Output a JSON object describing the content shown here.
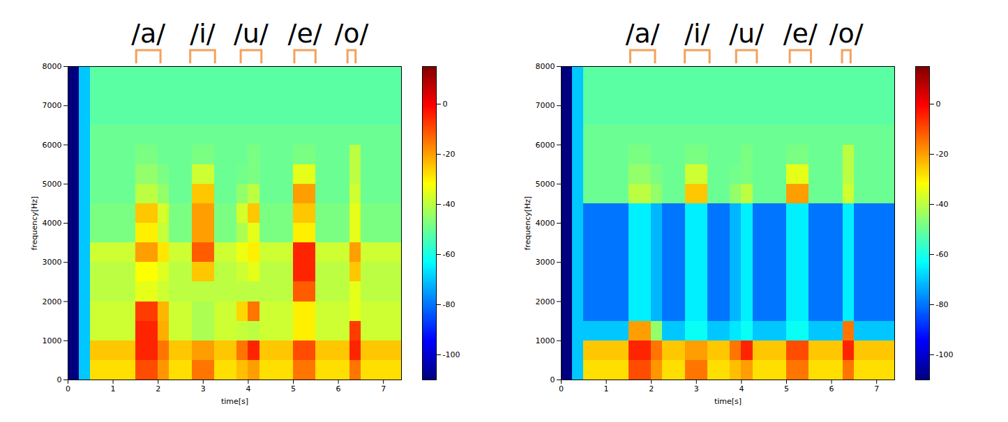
{
  "chart_data": [
    {
      "type": "heatmap",
      "x_label": "time[s]",
      "y_label": "frequency[Hz]",
      "xlim": [
        0,
        7.4
      ],
      "xticks": [
        0,
        1,
        2,
        3,
        4,
        5,
        6,
        7
      ],
      "ylim": [
        0,
        8000
      ],
      "yticks": [
        0,
        1000,
        2000,
        3000,
        4000,
        5000,
        6000,
        7000,
        8000
      ],
      "color": "jet",
      "colorbar": {
        "range": [
          -110,
          15
        ],
        "ticks": [
          -100,
          -80,
          -60,
          -40,
          -20,
          0
        ]
      },
      "annotations": [
        {
          "text": "/a/",
          "x1": 1.52,
          "x2": 2.06
        },
        {
          "text": "/i/",
          "x1": 2.72,
          "x2": 3.27
        },
        {
          "text": "/u/",
          "x1": 3.84,
          "x2": 4.3
        },
        {
          "text": "/e/",
          "x1": 5.03,
          "x2": 5.5
        },
        {
          "text": "/o/",
          "x1": 6.21,
          "x2": 6.39
        }
      ],
      "time_bins": [
        0,
        0.25,
        0.5,
        0.75,
        1,
        1.25,
        1.5,
        1.75,
        2,
        2.25,
        2.5,
        2.75,
        3,
        3.25,
        3.5,
        3.75,
        4,
        4.25,
        4.5,
        4.75,
        5,
        5.25,
        5.5,
        5.75,
        6,
        6.25,
        6.5,
        6.75,
        7,
        7.25,
        7.4
      ],
      "freq_bins": [
        0,
        500,
        1000,
        1500,
        2000,
        2500,
        3000,
        3500,
        4000,
        4500,
        5000,
        5500,
        6000,
        6500,
        7000,
        7500,
        8000
      ],
      "cells": [
        [
          -110,
          -70,
          -28,
          -28,
          -28,
          -28,
          -10,
          -10,
          -19,
          -28,
          -28,
          -15,
          -15,
          -28,
          -28,
          -24,
          -20,
          -28,
          -28,
          -28,
          -15,
          -15,
          -28,
          -28,
          -28,
          -15,
          -28,
          -28,
          -28,
          -28
        ],
        [
          -110,
          -70,
          -25,
          -25,
          -25,
          -25,
          -5,
          -5,
          -15,
          -25,
          -25,
          -20,
          -20,
          -25,
          -25,
          -15,
          -5,
          -25,
          -25,
          -25,
          -10,
          -10,
          -25,
          -25,
          -25,
          -5,
          -25,
          -25,
          -25,
          -25
        ],
        [
          -110,
          -70,
          -38,
          -38,
          -38,
          -38,
          -5,
          -5,
          -22,
          -38,
          -38,
          -42,
          -42,
          -38,
          -38,
          -39,
          -40,
          -38,
          -38,
          -38,
          -30,
          -30,
          -38,
          -38,
          -38,
          -8,
          -38,
          -38,
          -38,
          -38
        ],
        [
          -110,
          -70,
          -38,
          -38,
          -38,
          -38,
          -8,
          -8,
          -23,
          -38,
          -38,
          -42,
          -42,
          -38,
          -38,
          -27,
          -15,
          -38,
          -38,
          -38,
          -30,
          -30,
          -38,
          -38,
          -38,
          -35,
          -38,
          -38,
          -38,
          -38
        ],
        [
          -110,
          -70,
          -40,
          -40,
          -40,
          -40,
          -35,
          -35,
          -38,
          -40,
          -40,
          -40,
          -40,
          -40,
          -40,
          -40,
          -40,
          -40,
          -40,
          -40,
          -12,
          -12,
          -40,
          -40,
          -40,
          -35,
          -40,
          -40,
          -40,
          -40
        ],
        [
          -110,
          -70,
          -40,
          -40,
          -40,
          -40,
          -32,
          -32,
          -36,
          -40,
          -40,
          -25,
          -25,
          -40,
          -40,
          -38,
          -35,
          -40,
          -40,
          -40,
          -5,
          -5,
          -40,
          -40,
          -40,
          -25,
          -40,
          -40,
          -40,
          -40
        ],
        [
          -110,
          -70,
          -38,
          -38,
          -38,
          -38,
          -20,
          -20,
          -29,
          -38,
          -38,
          -12,
          -12,
          -38,
          -38,
          -34,
          -30,
          -38,
          -38,
          -38,
          -5,
          -5,
          -38,
          -38,
          -38,
          -20,
          -38,
          -38,
          -38,
          -38
        ],
        [
          -110,
          -70,
          -48,
          -48,
          -48,
          -48,
          -30,
          -30,
          -39,
          -48,
          -48,
          -20,
          -20,
          -48,
          -48,
          -42,
          -35,
          -48,
          -48,
          -48,
          -30,
          -30,
          -48,
          -48,
          -48,
          -35,
          -48,
          -48,
          -48,
          -48
        ],
        [
          -110,
          -70,
          -48,
          -48,
          -48,
          -48,
          -25,
          -25,
          -37,
          -48,
          -48,
          -20,
          -20,
          -48,
          -48,
          -37,
          -25,
          -48,
          -48,
          -48,
          -25,
          -25,
          -48,
          -48,
          -48,
          -35,
          -48,
          -48,
          -48,
          -48
        ],
        [
          -110,
          -70,
          -50,
          -50,
          -50,
          -50,
          -40,
          -40,
          -45,
          -50,
          -50,
          -25,
          -25,
          -50,
          -50,
          -45,
          -40,
          -50,
          -50,
          -50,
          -20,
          -20,
          -50,
          -50,
          -50,
          -38,
          -50,
          -50,
          -50,
          -50
        ],
        [
          -110,
          -70,
          -50,
          -50,
          -50,
          -50,
          -45,
          -45,
          -48,
          -50,
          -50,
          -38,
          -38,
          -50,
          -50,
          -49,
          -48,
          -50,
          -50,
          -50,
          -35,
          -35,
          -50,
          -50,
          -50,
          -40,
          -50,
          -50,
          -50,
          -50
        ],
        [
          -110,
          -70,
          -50,
          -50,
          -50,
          -50,
          -48,
          -48,
          -50,
          -50,
          -50,
          -48,
          -48,
          -50,
          -50,
          -50,
          -48,
          -50,
          -50,
          -50,
          -48,
          -48,
          -50,
          -50,
          -50,
          -40,
          -50,
          -50,
          -50,
          -50
        ],
        [
          -110,
          -70,
          -50,
          -50,
          -50,
          -50,
          -50,
          -50,
          -50,
          -50,
          -50,
          -50,
          -50,
          -50,
          -50,
          -50,
          -50,
          -50,
          -50,
          -50,
          -50,
          -50,
          -50,
          -50,
          -50,
          -50,
          -50,
          -50,
          -50,
          -50
        ],
        [
          -110,
          -70,
          -52,
          -52,
          -52,
          -52,
          -52,
          -52,
          -52,
          -52,
          -52,
          -52,
          -52,
          -52,
          -52,
          -52,
          -52,
          -52,
          -52,
          -52,
          -52,
          -52,
          -52,
          -52,
          -52,
          -52,
          -52,
          -52,
          -52,
          -52
        ],
        [
          -110,
          -70,
          -52,
          -52,
          -52,
          -52,
          -52,
          -52,
          -52,
          -52,
          -52,
          -52,
          -52,
          -52,
          -52,
          -52,
          -52,
          -52,
          -52,
          -52,
          -52,
          -52,
          -52,
          -52,
          -52,
          -52,
          -52,
          -52,
          -52,
          -52
        ],
        [
          -110,
          -70,
          -52,
          -52,
          -52,
          -52,
          -52,
          -52,
          -52,
          -52,
          -52,
          -52,
          -52,
          -52,
          -52,
          -52,
          -52,
          -52,
          -52,
          -52,
          -52,
          -52,
          -52,
          -52,
          -52,
          -52,
          -52,
          -52,
          -52,
          -52
        ]
      ]
    },
    {
      "type": "heatmap",
      "x_label": "time[s]",
      "y_label": "frequency[Hz]",
      "xlim": [
        0,
        7.4
      ],
      "xticks": [
        0,
        1,
        2,
        3,
        4,
        5,
        6,
        7
      ],
      "ylim": [
        0,
        8000
      ],
      "yticks": [
        0,
        1000,
        2000,
        3000,
        4000,
        5000,
        6000,
        7000,
        8000
      ],
      "color": "jet",
      "colorbar": {
        "range": [
          -110,
          15
        ],
        "ticks": [
          -100,
          -80,
          -60,
          -40,
          -20,
          0
        ]
      },
      "annotations": [
        {
          "text": "/a/",
          "x1": 1.54,
          "x2": 2.09
        },
        {
          "text": "/i/",
          "x1": 2.75,
          "x2": 3.3
        },
        {
          "text": "/u/",
          "x1": 3.89,
          "x2": 4.35
        },
        {
          "text": "/e/",
          "x1": 5.08,
          "x2": 5.55
        },
        {
          "text": "/o/",
          "x1": 6.24,
          "x2": 6.43
        }
      ],
      "time_bins": [
        0,
        0.25,
        0.5,
        0.75,
        1,
        1.25,
        1.5,
        1.75,
        2,
        2.25,
        2.5,
        2.75,
        3,
        3.25,
        3.5,
        3.75,
        4,
        4.25,
        4.5,
        4.75,
        5,
        5.25,
        5.5,
        5.75,
        6,
        6.25,
        6.5,
        6.75,
        7,
        7.25,
        7.4
      ],
      "freq_bins": [
        0,
        500,
        1000,
        1500,
        2000,
        2500,
        3000,
        3500,
        4000,
        4500,
        5000,
        5500,
        6000,
        6500,
        7000,
        7500,
        8000
      ],
      "cells": [
        [
          -110,
          -70,
          -28,
          -28,
          -28,
          -28,
          -10,
          -10,
          -19,
          -28,
          -28,
          -15,
          -15,
          -28,
          -28,
          -24,
          -20,
          -28,
          -28,
          -28,
          -15,
          -15,
          -28,
          -28,
          -28,
          -15,
          -28,
          -28,
          -28,
          -28
        ],
        [
          -110,
          -70,
          -25,
          -25,
          -25,
          -25,
          -5,
          -5,
          -15,
          -25,
          -25,
          -20,
          -20,
          -25,
          -25,
          -15,
          -5,
          -25,
          -25,
          -25,
          -10,
          -10,
          -25,
          -25,
          -25,
          -5,
          -25,
          -25,
          -25,
          -25
        ],
        [
          -110,
          -70,
          -70,
          -70,
          -70,
          -70,
          -20,
          -20,
          -45,
          -70,
          -70,
          -62,
          -62,
          -70,
          -70,
          -66,
          -62,
          -70,
          -70,
          -70,
          -62,
          -62,
          -70,
          -70,
          -70,
          -15,
          -70,
          -70,
          -70,
          -70
        ],
        [
          -110,
          -70,
          -80,
          -80,
          -80,
          -80,
          -65,
          -65,
          -72,
          -80,
          -80,
          -65,
          -65,
          -80,
          -80,
          -72,
          -65,
          -80,
          -80,
          -80,
          -65,
          -65,
          -80,
          -80,
          -80,
          -65,
          -80,
          -80,
          -80,
          -80
        ],
        [
          -110,
          -70,
          -80,
          -80,
          -80,
          -80,
          -65,
          -65,
          -72,
          -80,
          -80,
          -65,
          -65,
          -80,
          -80,
          -72,
          -65,
          -80,
          -80,
          -80,
          -65,
          -65,
          -80,
          -80,
          -80,
          -65,
          -80,
          -80,
          -80,
          -80
        ],
        [
          -110,
          -70,
          -80,
          -80,
          -80,
          -80,
          -65,
          -65,
          -72,
          -80,
          -80,
          -65,
          -65,
          -80,
          -80,
          -72,
          -65,
          -80,
          -80,
          -80,
          -65,
          -65,
          -80,
          -80,
          -80,
          -65,
          -80,
          -80,
          -80,
          -80
        ],
        [
          -110,
          -70,
          -80,
          -80,
          -80,
          -80,
          -65,
          -65,
          -72,
          -80,
          -80,
          -65,
          -65,
          -80,
          -80,
          -72,
          -65,
          -80,
          -80,
          -80,
          -65,
          -65,
          -80,
          -80,
          -80,
          -65,
          -80,
          -80,
          -80,
          -80
        ],
        [
          -110,
          -70,
          -80,
          -80,
          -80,
          -80,
          -65,
          -65,
          -72,
          -80,
          -80,
          -65,
          -65,
          -80,
          -80,
          -72,
          -65,
          -80,
          -80,
          -80,
          -65,
          -65,
          -80,
          -80,
          -80,
          -65,
          -80,
          -80,
          -80,
          -80
        ],
        [
          -110,
          -70,
          -80,
          -80,
          -80,
          -80,
          -65,
          -65,
          -72,
          -80,
          -80,
          -65,
          -65,
          -80,
          -80,
          -72,
          -65,
          -80,
          -80,
          -80,
          -65,
          -65,
          -80,
          -80,
          -80,
          -65,
          -80,
          -80,
          -80,
          -80
        ],
        [
          -110,
          -70,
          -50,
          -50,
          -50,
          -50,
          -40,
          -40,
          -45,
          -50,
          -50,
          -25,
          -25,
          -50,
          -50,
          -45,
          -40,
          -50,
          -50,
          -50,
          -20,
          -20,
          -50,
          -50,
          -50,
          -38,
          -50,
          -50,
          -50,
          -50
        ],
        [
          -110,
          -70,
          -50,
          -50,
          -50,
          -50,
          -45,
          -45,
          -48,
          -50,
          -50,
          -38,
          -38,
          -50,
          -50,
          -49,
          -48,
          -50,
          -50,
          -50,
          -35,
          -35,
          -50,
          -50,
          -50,
          -40,
          -50,
          -50,
          -50,
          -50
        ],
        [
          -110,
          -70,
          -50,
          -50,
          -50,
          -50,
          -48,
          -48,
          -50,
          -50,
          -50,
          -48,
          -48,
          -50,
          -50,
          -50,
          -48,
          -50,
          -50,
          -50,
          -48,
          -48,
          -50,
          -50,
          -50,
          -40,
          -50,
          -50,
          -50,
          -50
        ],
        [
          -110,
          -70,
          -50,
          -50,
          -50,
          -50,
          -50,
          -50,
          -50,
          -50,
          -50,
          -50,
          -50,
          -50,
          -50,
          -50,
          -50,
          -50,
          -50,
          -50,
          -50,
          -50,
          -50,
          -50,
          -50,
          -50,
          -50,
          -50,
          -50,
          -50
        ],
        [
          -110,
          -70,
          -52,
          -52,
          -52,
          -52,
          -52,
          -52,
          -52,
          -52,
          -52,
          -52,
          -52,
          -52,
          -52,
          -52,
          -52,
          -52,
          -52,
          -52,
          -52,
          -52,
          -52,
          -52,
          -52,
          -52,
          -52,
          -52,
          -52,
          -52
        ],
        [
          -110,
          -70,
          -52,
          -52,
          -52,
          -52,
          -52,
          -52,
          -52,
          -52,
          -52,
          -52,
          -52,
          -52,
          -52,
          -52,
          -52,
          -52,
          -52,
          -52,
          -52,
          -52,
          -52,
          -52,
          -52,
          -52,
          -52,
          -52,
          -52,
          -52
        ],
        [
          -110,
          -70,
          -52,
          -52,
          -52,
          -52,
          -52,
          -52,
          -52,
          -52,
          -52,
          -52,
          -52,
          -52,
          -52,
          -52,
          -52,
          -52,
          -52,
          -52,
          -52,
          -52,
          -52,
          -52,
          -52,
          -52,
          -52,
          -52,
          -52,
          -52
        ]
      ]
    }
  ]
}
